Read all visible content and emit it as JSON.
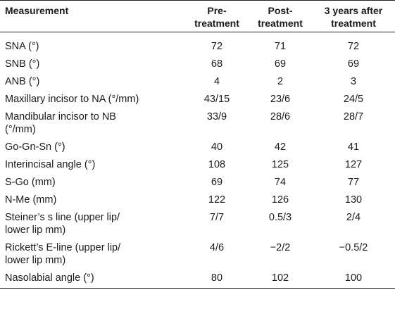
{
  "table": {
    "headers": [
      "Measurement",
      "Pre-\ntreatment",
      "Post-\ntreatment",
      "3 years after\ntreatment"
    ],
    "rows": [
      {
        "measurement": "SNA (°)",
        "pre": "72",
        "post": "71",
        "after3": "72"
      },
      {
        "measurement": "SNB (°)",
        "pre": "68",
        "post": "69",
        "after3": "69"
      },
      {
        "measurement": "ANB (°)",
        "pre": "4",
        "post": "2",
        "after3": "3"
      },
      {
        "measurement": "Maxillary incisor to NA (°/mm)",
        "pre": "43/15",
        "post": "23/6",
        "after3": "24/5"
      },
      {
        "measurement": "Mandibular incisor to NB\n(°/mm)",
        "pre": "33/9",
        "post": "28/6",
        "after3": "28/7"
      },
      {
        "measurement": "Go-Gn-Sn (°)",
        "pre": "40",
        "post": "42",
        "after3": "41"
      },
      {
        "measurement": "Interincisal angle (°)",
        "pre": "108",
        "post": "125",
        "after3": "127"
      },
      {
        "measurement": "S-Go (mm)",
        "pre": "69",
        "post": "74",
        "after3": "77"
      },
      {
        "measurement": "N-Me (mm)",
        "pre": "122",
        "post": "126",
        "after3": "130"
      },
      {
        "measurement": "Steiner’s s line (upper lip/\nlower lip mm)",
        "pre": "7/7",
        "post": "0.5/3",
        "after3": "2/4"
      },
      {
        "measurement": "Rickett’s E-line (upper lip/\nlower lip mm)",
        "pre": "4/6",
        "post": "−2/2",
        "after3": "−0.5/2"
      },
      {
        "measurement": "Nasolabial angle (°)",
        "pre": "80",
        "post": "102",
        "after3": "100"
      }
    ]
  }
}
